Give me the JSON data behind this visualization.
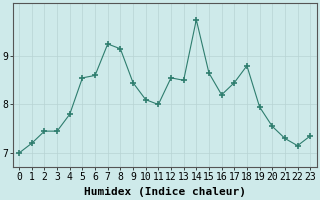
{
  "x": [
    0,
    1,
    2,
    3,
    4,
    5,
    6,
    7,
    8,
    9,
    10,
    11,
    12,
    13,
    14,
    15,
    16,
    17,
    18,
    19,
    20,
    21,
    22,
    23
  ],
  "y": [
    7.0,
    7.2,
    7.45,
    7.45,
    7.8,
    8.55,
    8.6,
    9.25,
    9.15,
    8.45,
    8.1,
    8.0,
    8.55,
    8.5,
    9.75,
    8.65,
    8.2,
    8.45,
    8.8,
    7.95,
    7.55,
    7.3,
    7.15,
    7.35
  ],
  "line_color": "#2e7d6e",
  "marker": "+",
  "marker_size": 4,
  "bg_color": "#ceeaea",
  "grid_color": "#b8d4d4",
  "xlabel": "Humidex (Indice chaleur)",
  "ylim": [
    6.7,
    10.1
  ],
  "xlim": [
    -0.5,
    23.5
  ],
  "yticks": [
    7,
    8,
    9
  ],
  "xtick_labels": [
    "0",
    "1",
    "2",
    "3",
    "4",
    "5",
    "6",
    "7",
    "8",
    "9",
    "10",
    "11",
    "12",
    "13",
    "14",
    "15",
    "16",
    "17",
    "18",
    "19",
    "20",
    "21",
    "22",
    "23"
  ],
  "xlabel_fontsize": 8,
  "tick_fontsize": 7
}
